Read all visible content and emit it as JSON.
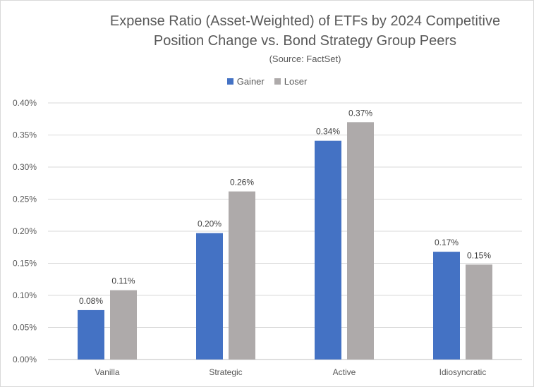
{
  "chart_data": {
    "type": "bar",
    "title_lines": [
      "Expense Ratio (Asset-Weighted) of ETFs by 2024 Competitive",
      "Position Change vs. Bond Strategy Group Peers"
    ],
    "subtitle": "(Source: FactSet)",
    "categories": [
      "Vanilla",
      "Strategic",
      "Active",
      "Idiosyncratic"
    ],
    "series": [
      {
        "name": "Gainer",
        "color": "#4472c4",
        "values": [
          0.077,
          0.197,
          0.341,
          0.168
        ],
        "labels": [
          "0.08%",
          "0.20%",
          "0.34%",
          "0.17%"
        ]
      },
      {
        "name": "Loser",
        "color": "#aeaaaa",
        "values": [
          0.108,
          0.262,
          0.37,
          0.148
        ],
        "labels": [
          "0.11%",
          "0.26%",
          "0.37%",
          "0.15%"
        ]
      }
    ],
    "ylim": [
      0,
      0.4
    ],
    "y_ticks": [
      0,
      0.05,
      0.1,
      0.15,
      0.2,
      0.25,
      0.3,
      0.35,
      0.4
    ],
    "y_tick_labels": [
      "0.00%",
      "0.05%",
      "0.10%",
      "0.15%",
      "0.20%",
      "0.25%",
      "0.30%",
      "0.35%",
      "0.40%"
    ],
    "xlabel": "",
    "ylabel": "",
    "grid": true,
    "legend_position": "top"
  }
}
